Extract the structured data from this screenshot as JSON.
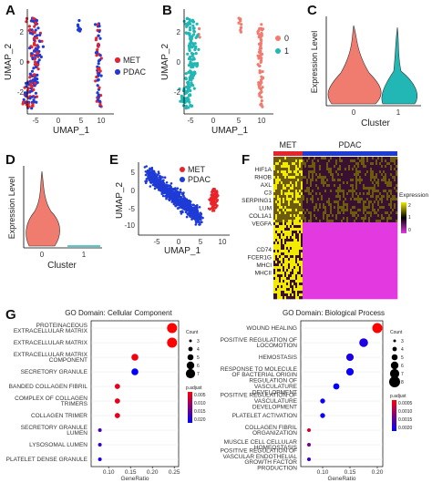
{
  "panel_labels": {
    "a": "A",
    "b": "B",
    "c": "C",
    "d": "D",
    "e": "E",
    "f": "F",
    "g": "G"
  },
  "colors": {
    "met": "#e8242b",
    "pdac": "#1f3bd6",
    "cl0": "#f07b6f",
    "cl1": "#22b7b5",
    "heat_hi": "#f2ea00",
    "heat_mid": "#000000",
    "heat_lo": "#e23ae0",
    "grad_red": "#ff0000",
    "grad_blue": "#0000ff"
  },
  "chart_data": [
    {
      "id": "A",
      "type": "scatter",
      "xlabel": "UMAP_1",
      "ylabel": "UMAP_2",
      "xticks": [
        "-5",
        "0",
        "5",
        "10"
      ],
      "yticks": [
        "-2",
        "0",
        "2"
      ],
      "legend": [
        "MET",
        "PDAC"
      ],
      "legend_position": "right"
    },
    {
      "id": "B",
      "type": "scatter",
      "xlabel": "UMAP_1",
      "ylabel": "UMAP_2",
      "xticks": [
        "-5",
        "0",
        "5",
        "10"
      ],
      "yticks": [
        "-2",
        "0",
        "2"
      ],
      "legend": [
        "0",
        "1"
      ],
      "legend_position": "right"
    },
    {
      "id": "C",
      "type": "violin",
      "xlabel": "Cluster",
      "ylabel": "Expression Level",
      "categories": [
        "0",
        "1"
      ]
    },
    {
      "id": "D",
      "type": "violin",
      "xlabel": "Cluster",
      "ylabel": "Expression Level",
      "categories": [
        "0",
        "1"
      ]
    },
    {
      "id": "E",
      "type": "scatter",
      "xlabel": "UMAP_1",
      "ylabel": "UMAP_2",
      "xticks": [
        "-5",
        "0",
        "5",
        "10"
      ],
      "yticks": [
        "-10",
        "-5",
        "0",
        "5"
      ],
      "legend": [
        "MET",
        "PDAC"
      ],
      "legend_position": "top-right"
    },
    {
      "id": "F",
      "type": "heatmap",
      "groups": [
        "MET",
        "PDAC"
      ],
      "genes_top": [
        "HIF1A",
        "RHOB",
        "AXL",
        "C3",
        "SERPING1",
        "LUM",
        "COL1A1",
        "VEGFA"
      ],
      "genes_bottom": [
        "CD74",
        "FCER1G",
        "MHCI",
        "MHCII"
      ],
      "legend_title": "Expression",
      "legend_ticks": [
        "2",
        "1",
        "0"
      ]
    },
    {
      "id": "G1",
      "type": "scatter",
      "title": "GO Domain: Cellular Component",
      "xlabel": "GeneRatio",
      "xticks": [
        "0.10",
        "0.15",
        "0.20",
        "0.25"
      ],
      "xlim": [
        0.06,
        0.26
      ],
      "categories": [
        "PROTEINACEOUS EXTRACELLULAR MATRIX",
        "EXTRACELLULAR MATRIX",
        "EXTRACELLULAR MATRIX COMPONENT",
        "SECRETORY GRANULE",
        "BANDED COLLAGEN FIBRIL",
        "COMPLEX OF COLLAGEN TRIMERS",
        "COLLAGEN TRIMER",
        "SECRETORY GRANULE LUMEN",
        "LYSOSOMAL LUMEN",
        "PLATELET DENSE GRANULE"
      ],
      "x": [
        0.245,
        0.245,
        0.16,
        0.16,
        0.12,
        0.12,
        0.12,
        0.08,
        0.08,
        0.08
      ],
      "count": [
        7,
        7,
        5,
        5,
        4,
        4,
        4,
        3,
        3,
        3
      ],
      "padjust": [
        0.001,
        0.001,
        0.002,
        0.02,
        0.003,
        0.003,
        0.003,
        0.015,
        0.016,
        0.018
      ],
      "size_legend_title": "Count",
      "size_legend": [
        "3",
        "4",
        "5",
        "6",
        "7"
      ],
      "color_legend_title": "p.adjust",
      "color_legend": [
        "0.005",
        "0.010",
        "0.015",
        "0.020"
      ]
    },
    {
      "id": "G2",
      "type": "scatter",
      "title": "GO Domain: Biological Process",
      "xlabel": "GeneRatio",
      "xticks": [
        "0.10",
        "0.15",
        "0.20"
      ],
      "xlim": [
        0.06,
        0.21
      ],
      "categories": [
        "WOUND HEALING",
        "POSITIVE REGULATION OF LOCOMOTION",
        "HEMOSTASIS",
        "RESPONSE TO MOLECULE OF BACTERIAL ORIGIN",
        "REGULATION OF VASCULATURE DEVELOPMENT",
        "POSITIVE REGULATION OF VASCULATURE DEVELOPMENT",
        "PLATELET ACTIVATION",
        "COLLAGEN FIBRIL ORGANIZATION",
        "MUSCLE CELL CELLULAR HOMEOSTASIS",
        "POSITIVE REGULATION OF VASCULAR ENDOTHELIAL GROWTH FACTOR PRODUCTION"
      ],
      "x": [
        0.2,
        0.175,
        0.15,
        0.15,
        0.125,
        0.1,
        0.1,
        0.075,
        0.075,
        0.075
      ],
      "count": [
        8,
        7,
        6,
        6,
        5,
        4,
        4,
        3,
        3,
        3
      ],
      "padjust": [
        0.0002,
        0.0018,
        0.0018,
        0.0019,
        0.002,
        0.0019,
        0.0019,
        0.0005,
        0.0012,
        0.0016
      ],
      "size_legend_title": "Count",
      "size_legend": [
        "3",
        "4",
        "5",
        "6",
        "7",
        "8"
      ],
      "color_legend_title": "p.adjust",
      "color_legend": [
        "0.0005",
        "0.0010",
        "0.0015",
        "0.0020"
      ]
    }
  ]
}
